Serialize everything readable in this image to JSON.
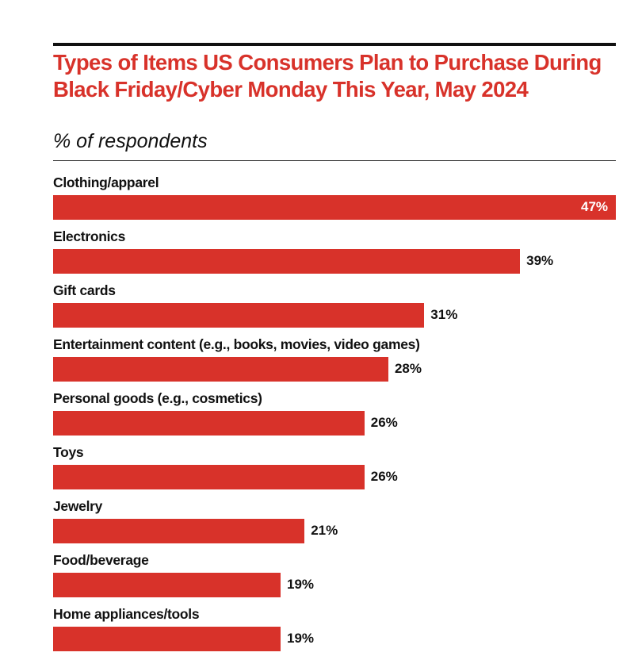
{
  "chart_data": {
    "type": "bar",
    "orientation": "horizontal",
    "title": "Types of Items US Consumers Plan to Purchase During Black Friday/Cyber Monday This Year, May 2024",
    "subtitle": "% of respondents",
    "categories": [
      "Clothing/apparel",
      "Electronics",
      "Gift cards",
      "Entertainment content (e.g., books, movies, video games)",
      "Personal goods (e.g., cosmetics)",
      "Toys",
      "Jewelry",
      "Food/beverage",
      "Home appliances/tools"
    ],
    "values": [
      47,
      39,
      31,
      28,
      26,
      26,
      21,
      19,
      19
    ],
    "value_labels": [
      "47%",
      "39%",
      "31%",
      "28%",
      "26%",
      "26%",
      "21%",
      "19%",
      "19%"
    ],
    "xlim": [
      0,
      47
    ],
    "grid": false,
    "bar_color": "#d8322a",
    "title_color": "#d8322a"
  }
}
